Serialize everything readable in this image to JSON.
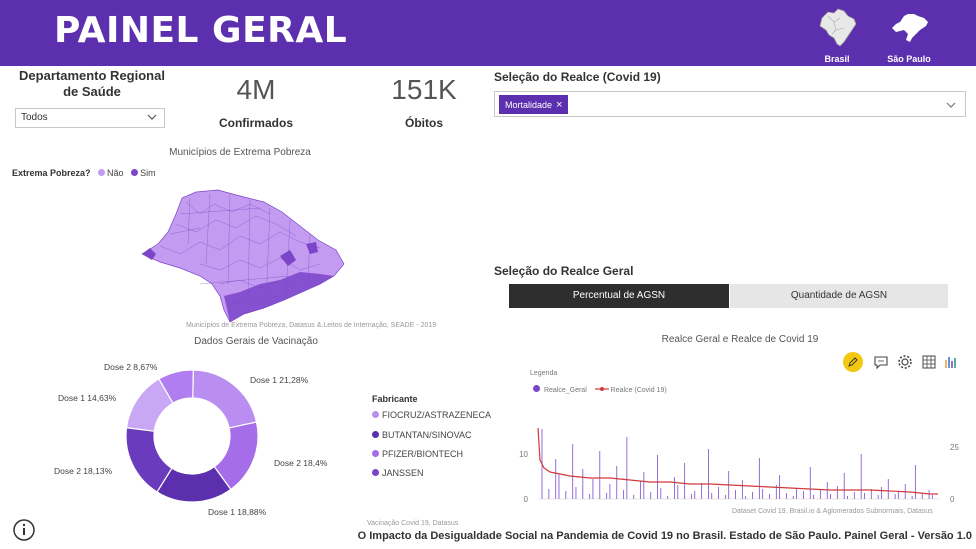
{
  "header": {
    "title": "PAINEL GERAL",
    "nav": [
      {
        "label": "Brasil",
        "icon": "brazil-map-icon"
      },
      {
        "label": "São Paulo",
        "icon": "sao-paulo-map-icon"
      }
    ]
  },
  "dept_slicer": {
    "label": "Departamento Regional de Saúde",
    "value": "Todos"
  },
  "kpis": {
    "confirmados": {
      "value": "4M",
      "label": "Confirmados"
    },
    "obitos": {
      "value": "151K",
      "label": "Óbitos"
    }
  },
  "realce_covid": {
    "label": "Seleção do Realce (Covid 19)",
    "selected_chip": "Mortalidade"
  },
  "map": {
    "title": "Municípios de Extrema Pobreza",
    "legend_title": "Extrema Pobreza?",
    "legend": [
      {
        "label": "Não",
        "color": "#c39bf0"
      },
      {
        "label": "Sim",
        "color": "#7b44c9"
      }
    ],
    "source": "Municípios de Extrema Pobreza, Datasus &.Leitos de Internação, SEADE - 2019"
  },
  "realce_geral": {
    "label": "Seleção do Realce Geral",
    "options": [
      "Percentual de AGSN",
      "Quantidade de AGSN"
    ],
    "active": "Percentual de AGSN"
  },
  "line_chart": {
    "title": "Realce Geral e Realce de Covid 19",
    "legend_title": "Legenda",
    "legend": [
      {
        "label": "Realce_Geral",
        "color": "#7b44c9"
      },
      {
        "label": "Realce (Covid 19)",
        "color": "#d13a3a"
      }
    ],
    "source": "Dataset Covid 19. Brasil.io  & Aglomerados Subnormais, Datasus",
    "y_left_ticks": [
      "10",
      "0"
    ],
    "y_right_ticks": [
      "25",
      "0"
    ]
  },
  "donut": {
    "title": "Dados Gerais de Vacinação",
    "source": "Vacinação Covid 19, Datasus"
  },
  "fabricante": {
    "title": "Fabricante",
    "items": [
      {
        "label": "FIOCRUZ/ASTRAZENECA",
        "color": "#b98ef0"
      },
      {
        "label": "BUTANTAN/SINOVAC",
        "color": "#5b2fae"
      },
      {
        "label": "PFIZER/BIONTECH",
        "color": "#a56de8"
      },
      {
        "label": "JANSSEN",
        "color": "#7b44c9"
      }
    ]
  },
  "chart_data": {
    "type": "pie",
    "title": "Dados Gerais de Vacinação",
    "categories": [
      "Dose 1",
      "Dose 2",
      "Dose 1",
      "Dose 2",
      "Dose 1",
      "Dose 2"
    ],
    "labels": [
      "Dose 1 21,28%",
      "Dose 2 18,4%",
      "Dose 1 18,88%",
      "Dose 2 18,13%",
      "Dose 1 14,63%",
      "Dose 2 8,67%"
    ],
    "values": [
      21.28,
      18.4,
      18.88,
      18.13,
      14.63,
      8.67
    ],
    "colors": [
      "#b98ef0",
      "#a56de8",
      "#5b2fae",
      "#6a3bbd",
      "#c8a8f4",
      "#b07ef0"
    ]
  },
  "footer": {
    "text": "O Impacto da Desigualdade Social na Pandemia de Covid 19 no Brasil. Estado de São Paulo. Painel Geral - Versão 1.0"
  }
}
